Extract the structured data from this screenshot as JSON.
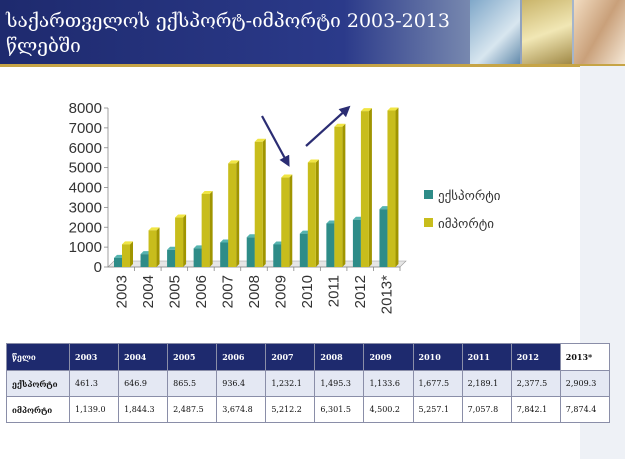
{
  "title": "საქართველოს ექსპორტ-იმპორტი 2003-2013 წლებში",
  "colors": {
    "export": "#2e8c88",
    "import": "#c8bd1c",
    "arrow": "#2b2d73"
  },
  "chart_data": {
    "type": "bar",
    "categories": [
      "2003",
      "2004",
      "2005",
      "2006",
      "2007",
      "2008",
      "2009",
      "2010",
      "2011",
      "2012",
      "2013*"
    ],
    "series": [
      {
        "name": "ექსპორტი",
        "values": [
          461.3,
          646.9,
          865.5,
          936.4,
          1232.1,
          1495.3,
          1133.6,
          1677.5,
          2189.1,
          2377.5,
          2909.3
        ]
      },
      {
        "name": "იმპორტი",
        "values": [
          1139.0,
          1844.3,
          2487.5,
          3674.8,
          5212.2,
          6301.5,
          4500.2,
          5257.1,
          7057.8,
          7842.1,
          7874.4
        ]
      }
    ],
    "yticks": [
      "0",
      "1000",
      "2000",
      "3000",
      "4000",
      "5000",
      "6000",
      "7000",
      "8000"
    ],
    "ylim": [
      0,
      8000
    ],
    "grid": false,
    "legend": "right"
  },
  "table": {
    "header_label": "წელი",
    "years": [
      "2003",
      "2004",
      "2005",
      "2006",
      "2007",
      "2008",
      "2009",
      "2010",
      "2011",
      "2012",
      "2013*"
    ],
    "rows": [
      {
        "label": "ექსპორტი",
        "values": [
          "461.3",
          "646.9",
          "865.5",
          "936.4",
          "1,232.1",
          "1,495.3",
          "1,133.6",
          "1,677.5",
          "2,189.1",
          "2,377.5",
          "2,909.3"
        ]
      },
      {
        "label": "იმპორტი",
        "values": [
          "1,139.0",
          "1,844.3",
          "2,487.5",
          "3,674.8",
          "5,212.2",
          "6,301.5",
          "4,500.2",
          "5,257.1",
          "7,057.8",
          "7,842.1",
          "7,874.4"
        ]
      }
    ]
  }
}
